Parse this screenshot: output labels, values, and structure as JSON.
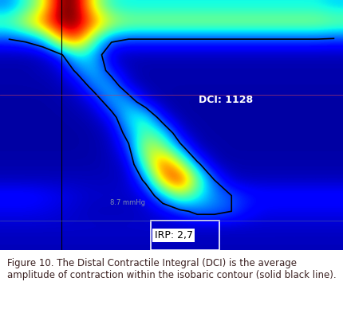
{
  "chart_data": {
    "type": "heatmap",
    "tick_labels": false,
    "zlim": [
      0,
      150
    ],
    "isobar": 30,
    "cells": [
      [
        40,
        60,
        90,
        150,
        150,
        90,
        60,
        55,
        55,
        55,
        55,
        55,
        55,
        55,
        55,
        55,
        55,
        55,
        55,
        50
      ],
      [
        70,
        90,
        120,
        150,
        150,
        120,
        90,
        80,
        80,
        80,
        80,
        80,
        80,
        80,
        80,
        80,
        80,
        80,
        80,
        75
      ],
      [
        30,
        35,
        50,
        110,
        130,
        70,
        35,
        30,
        30,
        30,
        30,
        30,
        30,
        30,
        30,
        30,
        30,
        30,
        30,
        28
      ],
      [
        8,
        8,
        10,
        25,
        60,
        45,
        10,
        8,
        8,
        8,
        8,
        8,
        8,
        8,
        8,
        8,
        8,
        8,
        8,
        8
      ],
      [
        6,
        6,
        8,
        10,
        35,
        50,
        20,
        8,
        6,
        6,
        6,
        6,
        6,
        6,
        6,
        6,
        6,
        6,
        6,
        6
      ],
      [
        6,
        6,
        6,
        8,
        12,
        40,
        45,
        12,
        6,
        6,
        6,
        6,
        6,
        6,
        6,
        6,
        6,
        6,
        6,
        6
      ],
      [
        5,
        5,
        5,
        6,
        8,
        15,
        45,
        45,
        12,
        6,
        5,
        5,
        5,
        5,
        5,
        5,
        5,
        5,
        5,
        5
      ],
      [
        5,
        5,
        5,
        5,
        6,
        8,
        20,
        55,
        60,
        15,
        6,
        5,
        5,
        5,
        5,
        5,
        5,
        5,
        5,
        5
      ],
      [
        5,
        5,
        5,
        5,
        5,
        6,
        10,
        40,
        70,
        55,
        12,
        6,
        5,
        5,
        5,
        5,
        5,
        5,
        5,
        5
      ],
      [
        5,
        5,
        5,
        5,
        5,
        6,
        8,
        25,
        90,
        80,
        40,
        8,
        6,
        5,
        5,
        5,
        5,
        5,
        5,
        5
      ],
      [
        6,
        6,
        6,
        6,
        6,
        6,
        8,
        12,
        70,
        130,
        90,
        35,
        8,
        6,
        6,
        6,
        6,
        6,
        6,
        6
      ],
      [
        8,
        8,
        8,
        8,
        8,
        8,
        8,
        10,
        35,
        110,
        140,
        75,
        30,
        10,
        8,
        8,
        8,
        8,
        8,
        8
      ],
      [
        20,
        20,
        18,
        15,
        12,
        10,
        10,
        10,
        15,
        45,
        80,
        60,
        40,
        30,
        22,
        20,
        20,
        20,
        20,
        20
      ],
      [
        15,
        15,
        14,
        12,
        10,
        8,
        8,
        8,
        10,
        15,
        25,
        35,
        35,
        30,
        20,
        15,
        15,
        15,
        15,
        15
      ],
      [
        10,
        10,
        10,
        10,
        10,
        10,
        10,
        10,
        10,
        10,
        10,
        10,
        10,
        10,
        10,
        10,
        10,
        10,
        10,
        10
      ],
      [
        8,
        8,
        8,
        8,
        8,
        8,
        8,
        8,
        8,
        8,
        8,
        8,
        8,
        8,
        8,
        8,
        8,
        8,
        8,
        8
      ]
    ],
    "annotations": [
      "DCI: 1128",
      "IRP: 2,7",
      "8.7 mmHg"
    ]
  },
  "caption": {
    "label": "Figure 10.",
    "text": "The Distal Contractile Integral (DCI) is the average amplitude of contraction within the isobaric contour (solid black line)."
  }
}
